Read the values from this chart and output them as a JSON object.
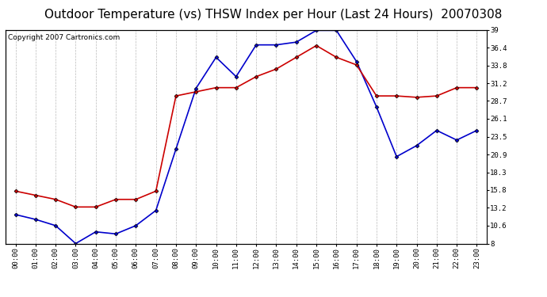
{
  "title": "Outdoor Temperature (vs) THSW Index per Hour (Last 24 Hours)  20070308",
  "copyright": "Copyright 2007 Cartronics.com",
  "hours": [
    "00:00",
    "01:00",
    "02:00",
    "03:00",
    "04:00",
    "05:00",
    "06:00",
    "07:00",
    "08:00",
    "09:00",
    "10:00",
    "11:00",
    "12:00",
    "13:00",
    "14:00",
    "15:00",
    "16:00",
    "17:00",
    "18:00",
    "19:00",
    "20:00",
    "21:00",
    "22:00",
    "23:00"
  ],
  "blue_data": [
    12.2,
    11.5,
    10.6,
    8.0,
    9.7,
    9.4,
    10.6,
    12.8,
    21.7,
    30.5,
    35.0,
    32.2,
    36.8,
    36.8,
    37.2,
    38.9,
    38.9,
    34.4,
    27.8,
    20.6,
    22.2,
    24.4,
    23.0,
    24.4
  ],
  "red_data": [
    15.6,
    15.0,
    14.4,
    13.3,
    13.3,
    14.4,
    14.4,
    15.6,
    29.4,
    30.0,
    30.6,
    30.6,
    32.2,
    33.3,
    35.0,
    36.7,
    35.0,
    33.9,
    29.4,
    29.4,
    29.2,
    29.4,
    30.6,
    30.6
  ],
  "blue_color": "#0000cc",
  "red_color": "#cc0000",
  "bg_color": "#ffffff",
  "grid_color": "#bbbbbb",
  "title_color": "#000000",
  "ymin": 8.0,
  "ymax": 39.0,
  "yticks": [
    8.0,
    10.6,
    13.2,
    15.8,
    18.3,
    20.9,
    23.5,
    26.1,
    28.7,
    31.2,
    33.8,
    36.4,
    39.0
  ],
  "marker": "D",
  "marker_size": 2.5,
  "line_width": 1.2,
  "title_fontsize": 11,
  "axis_fontsize": 6.5,
  "copyright_fontsize": 6.5
}
